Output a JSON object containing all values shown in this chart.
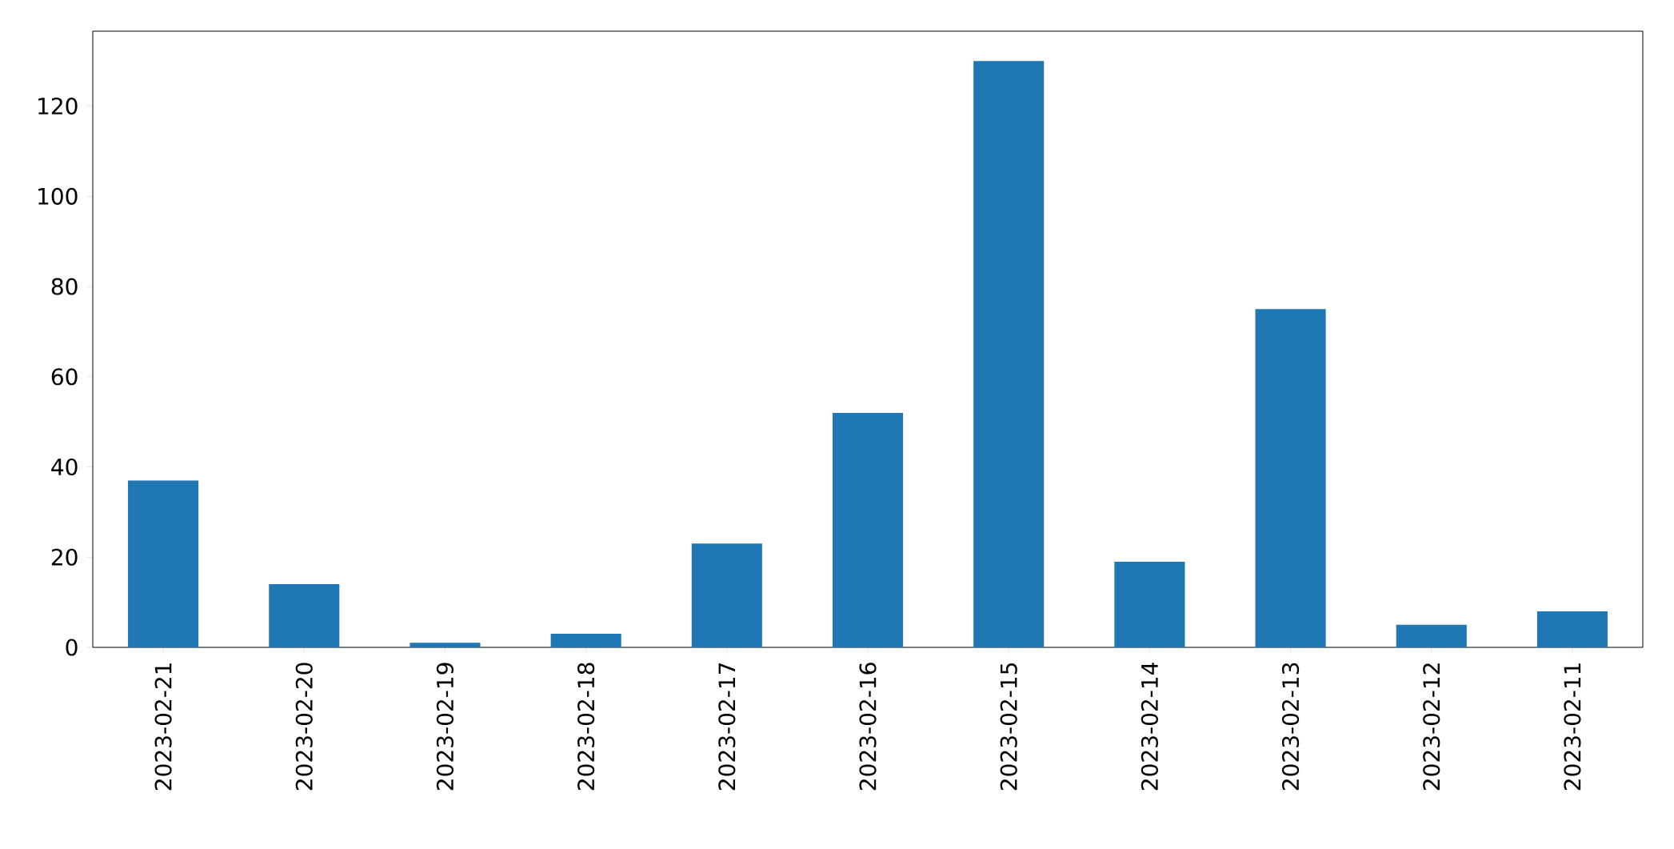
{
  "chart_data": {
    "type": "bar",
    "categories": [
      "2023-02-21",
      "2023-02-20",
      "2023-02-19",
      "2023-02-18",
      "2023-02-17",
      "2023-02-16",
      "2023-02-15",
      "2023-02-14",
      "2023-02-13",
      "2023-02-12",
      "2023-02-11"
    ],
    "values": [
      37,
      14,
      1,
      3,
      23,
      52,
      130,
      19,
      75,
      5,
      8
    ],
    "color": "#1f77b4",
    "ylim": [
      0,
      136.6
    ],
    "yticks": [
      0,
      20,
      40,
      60,
      80,
      100,
      120
    ]
  }
}
